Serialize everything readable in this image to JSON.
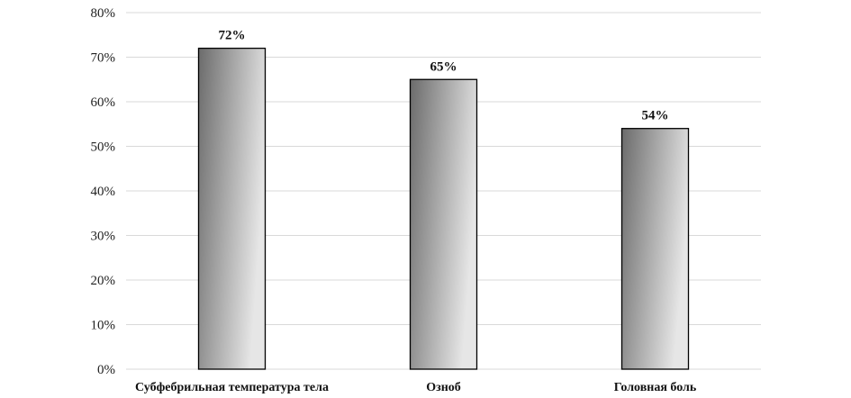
{
  "chart_data": {
    "type": "bar",
    "title": "",
    "xlabel": "",
    "ylabel": "",
    "categories": [
      "Субфебрильная температура тела",
      "Озноб",
      "Головная боль"
    ],
    "values": [
      72,
      65,
      54
    ],
    "data_labels": [
      "72%",
      "65%",
      "54%"
    ],
    "ylim": [
      0,
      80
    ],
    "yticks": [
      0,
      10,
      20,
      30,
      40,
      50,
      60,
      70,
      80
    ],
    "ytick_labels": [
      "0%",
      "10%",
      "20%",
      "30%",
      "40%",
      "50%",
      "60%",
      "70%",
      "80%"
    ],
    "grid": true,
    "legend": "none",
    "bar_fill": "gradient",
    "colors": {
      "gradient_dark": "#6b6b6b",
      "gradient_light": "#e6e6e6",
      "bar_stroke": "#000000",
      "gridline": "#d9d9d9"
    }
  }
}
